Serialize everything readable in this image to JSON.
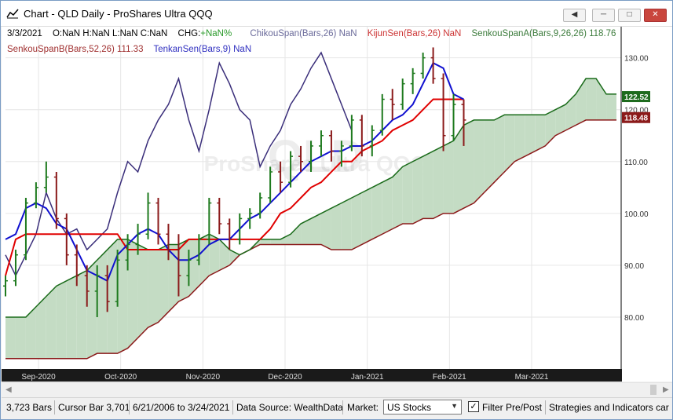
{
  "window": {
    "title": "Chart - QLD Daily - ProShares Ultra QQQ",
    "buttons": {
      "back": "◀",
      "minimize": "─",
      "maximize": "□",
      "close": "✕"
    }
  },
  "legend": {
    "date": "3/3/2021",
    "ohlc": "O:NaN H:NaN L:NaN C:NaN",
    "chg_label": "CHG:",
    "chg_value": "+NaN%",
    "chikou": "ChikouSpan(Bars,26) NaN",
    "kijun": "KijunSen(Bars,26) NaN",
    "senkouA": "SenkouSpanA(Bars,9,26,26) 118.76",
    "senkouB": "SenkouSpanB(Bars,52,26) 111.33",
    "tenkan": "TenkanSen(Bars,9) NaN"
  },
  "watermark": {
    "symbol": "QLD",
    "name": "ProShares Ultra QQQ"
  },
  "colors": {
    "up": "#1e7a1e",
    "down": "#8b1a1a",
    "chikou": "#3a2e7a",
    "kijun": "#e00000",
    "tenkan": "#1010d0",
    "spanA": "#1a6b1a",
    "spanB": "#8b1a1a",
    "cloud_bull": "#c4dcc4",
    "cloud_bear": "#f2b8b8",
    "chikou_legend": "#6a6a9a",
    "kijun_legend": "#cc3333",
    "senkouA_legend": "#3a7a3a",
    "senkouB_legend": "#a03030",
    "tenkan_legend": "#3030c0",
    "chg_green": "#2a9a2a"
  },
  "chart_data": {
    "type": "candlestick",
    "x_ticks": [
      "Sep-2020",
      "Oct-2020",
      "Nov-2020",
      "Dec-2020",
      "Jan-2021",
      "Feb-2021",
      "Mar-2021"
    ],
    "y_ticks": [
      "80.00",
      "90.00",
      "100.00",
      "110.00",
      "120.00",
      "130.00"
    ],
    "ylim": [
      70,
      136
    ],
    "price_labels": [
      {
        "label": "122.52",
        "value": 122.52,
        "color": "#1e6b1e"
      },
      {
        "label": "118.48",
        "value": 118.48,
        "color": "#8b1a1a"
      }
    ],
    "price_bars": [
      {
        "o": 86,
        "h": 88,
        "l": 84,
        "c": 87
      },
      {
        "o": 87,
        "h": 93,
        "l": 86,
        "c": 92
      },
      {
        "o": 92,
        "h": 103,
        "l": 91,
        "c": 102
      },
      {
        "o": 102,
        "h": 106,
        "l": 101,
        "c": 105
      },
      {
        "o": 105,
        "h": 110,
        "l": 104,
        "c": 107
      },
      {
        "o": 107,
        "h": 108,
        "l": 97,
        "c": 99
      },
      {
        "o": 99,
        "h": 100,
        "l": 90,
        "c": 92
      },
      {
        "o": 92,
        "h": 94,
        "l": 86,
        "c": 88
      },
      {
        "o": 88,
        "h": 90,
        "l": 82,
        "c": 85
      },
      {
        "o": 85,
        "h": 90,
        "l": 80,
        "c": 88
      },
      {
        "o": 88,
        "h": 90,
        "l": 81,
        "c": 83
      },
      {
        "o": 83,
        "h": 93,
        "l": 82,
        "c": 91
      },
      {
        "o": 91,
        "h": 96,
        "l": 89,
        "c": 94
      },
      {
        "o": 94,
        "h": 98,
        "l": 92,
        "c": 96
      },
      {
        "o": 96,
        "h": 104,
        "l": 95,
        "c": 102
      },
      {
        "o": 102,
        "h": 103,
        "l": 94,
        "c": 96
      },
      {
        "o": 96,
        "h": 98,
        "l": 91,
        "c": 93
      },
      {
        "o": 93,
        "h": 96,
        "l": 84,
        "c": 88
      },
      {
        "o": 88,
        "h": 93,
        "l": 86,
        "c": 91
      },
      {
        "o": 91,
        "h": 96,
        "l": 90,
        "c": 95
      },
      {
        "o": 95,
        "h": 103,
        "l": 94,
        "c": 102
      },
      {
        "o": 102,
        "h": 103,
        "l": 96,
        "c": 98
      },
      {
        "o": 98,
        "h": 99,
        "l": 93,
        "c": 95
      },
      {
        "o": 95,
        "h": 100,
        "l": 94,
        "c": 99
      },
      {
        "o": 99,
        "h": 101,
        "l": 97,
        "c": 100
      },
      {
        "o": 100,
        "h": 104,
        "l": 99,
        "c": 103
      },
      {
        "o": 103,
        "h": 109,
        "l": 102,
        "c": 108
      },
      {
        "o": 108,
        "h": 110,
        "l": 104,
        "c": 106
      },
      {
        "o": 106,
        "h": 112,
        "l": 105,
        "c": 111
      },
      {
        "o": 111,
        "h": 113,
        "l": 108,
        "c": 110
      },
      {
        "o": 110,
        "h": 114,
        "l": 108,
        "c": 113
      },
      {
        "o": 113,
        "h": 116,
        "l": 111,
        "c": 115
      },
      {
        "o": 115,
        "h": 116,
        "l": 110,
        "c": 112
      },
      {
        "o": 112,
        "h": 114,
        "l": 109,
        "c": 113
      },
      {
        "o": 113,
        "h": 119,
        "l": 112,
        "c": 118
      },
      {
        "o": 118,
        "h": 119,
        "l": 111,
        "c": 113
      },
      {
        "o": 113,
        "h": 117,
        "l": 111,
        "c": 116
      },
      {
        "o": 116,
        "h": 123,
        "l": 115,
        "c": 122
      },
      {
        "o": 122,
        "h": 124,
        "l": 118,
        "c": 121
      },
      {
        "o": 121,
        "h": 126,
        "l": 120,
        "c": 125
      },
      {
        "o": 125,
        "h": 128,
        "l": 123,
        "c": 127
      },
      {
        "o": 127,
        "h": 131,
        "l": 126,
        "c": 130
      },
      {
        "o": 130,
        "h": 132,
        "l": 125,
        "c": 126
      },
      {
        "o": 126,
        "h": 127,
        "l": 112,
        "c": 115
      },
      {
        "o": 115,
        "h": 123,
        "l": 114,
        "c": 121
      },
      {
        "o": 121,
        "h": 122,
        "l": 113,
        "c": 118
      }
    ],
    "series": {
      "chikou": {
        "start": 0,
        "end": 34,
        "values": [
          92,
          88,
          92,
          96,
          104,
          99,
          96,
          97,
          93,
          95,
          97,
          104,
          110,
          108,
          114,
          118,
          121,
          126,
          118,
          112,
          120,
          129,
          125,
          120,
          118,
          109,
          113,
          116,
          121,
          124,
          128,
          131,
          126,
          121,
          116
        ]
      },
      "tenkan": {
        "start": 0,
        "end": 45,
        "values": [
          95,
          96,
          101,
          102,
          101,
          98,
          97,
          93,
          89,
          88,
          87,
          92,
          94,
          96,
          97,
          96,
          93,
          91,
          91,
          92,
          94,
          95,
          95,
          97,
          99,
          100,
          102,
          104,
          106,
          108,
          110,
          111,
          112,
          112,
          113,
          113,
          114,
          116,
          118,
          119,
          121,
          125,
          129,
          128,
          123,
          122
        ]
      },
      "kijun": {
        "start": 0,
        "end": 45,
        "values": [
          88,
          95,
          96,
          96,
          96,
          96,
          96,
          96,
          96,
          96,
          96,
          96,
          93,
          93,
          93,
          93,
          93,
          93,
          95,
          95,
          95,
          95,
          95,
          95,
          95,
          95,
          97,
          100,
          101,
          103,
          105,
          106,
          108,
          110,
          110,
          112,
          113,
          114,
          116,
          117,
          118,
          120,
          122,
          122,
          122,
          122
        ]
      },
      "senkouA": {
        "start": 0,
        "end": 60,
        "values": [
          80,
          80,
          80,
          82,
          84,
          86,
          87,
          88,
          89,
          91,
          93,
          95,
          95,
          94,
          93,
          93,
          94,
          94,
          95,
          95,
          96,
          95,
          93,
          92,
          93,
          95,
          95,
          95,
          96,
          98,
          99,
          100,
          101,
          102,
          103,
          104,
          105,
          106,
          107,
          109,
          110,
          111,
          112,
          113,
          114,
          117,
          118,
          118,
          118,
          119,
          119,
          119,
          119,
          119,
          120,
          121,
          123,
          126,
          126,
          123,
          123
        ]
      },
      "senkouB": {
        "start": 0,
        "end": 60,
        "values": [
          72,
          72,
          72,
          72,
          72,
          72,
          72,
          72,
          72,
          73,
          73,
          73,
          74,
          76,
          78,
          79,
          81,
          83,
          84,
          86,
          88,
          89,
          90,
          92,
          93,
          94,
          94,
          94,
          94,
          94,
          94,
          94,
          93,
          93,
          93,
          94,
          95,
          96,
          97,
          98,
          98,
          99,
          99,
          100,
          100,
          101,
          102,
          104,
          106,
          108,
          110,
          111,
          112,
          113,
          115,
          116,
          117,
          118,
          118,
          118,
          118
        ]
      }
    }
  },
  "statusbar": {
    "bars": "3,723 Bars",
    "cursor": "Cursor Bar 3,701",
    "range": "6/21/2006 to 3/24/2021",
    "source": "Data Source: WealthData",
    "market_label": "Market:",
    "market_value": "US Stocks",
    "filter_label": "Filter Pre/Post",
    "filter_checked": "✓",
    "strategies": "Strategies and Indicators car"
  }
}
